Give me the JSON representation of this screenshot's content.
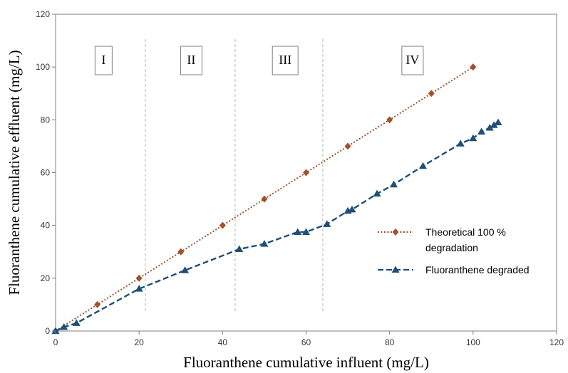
{
  "chart_data": {
    "type": "line",
    "xlabel": "Fluoranthene cumulative influent (mg/L)",
    "ylabel": "Fluoranthene cumulative effluent (mg/L)",
    "xlim": [
      0,
      120
    ],
    "ylim": [
      0,
      120
    ],
    "x_ticks": [
      0,
      20,
      40,
      60,
      80,
      100,
      120
    ],
    "y_ticks": [
      0,
      20,
      40,
      60,
      80,
      100,
      120
    ],
    "grid": false,
    "phase_boundaries": [
      21.5,
      43,
      64
    ],
    "phases": [
      {
        "label": "I",
        "center": 11.5
      },
      {
        "label": "II",
        "center": 32.5
      },
      {
        "label": "III",
        "center": 55
      },
      {
        "label": "IV",
        "center": 85.5
      }
    ],
    "legend_position": "right",
    "series": [
      {
        "name": "Theoretical 100 % degradation",
        "legend_lines": [
          "Theoretical 100 %",
          "degradation"
        ],
        "color": "#A0522D",
        "marker": "diamond",
        "line_style": "dotted",
        "x": [
          0,
          10,
          20,
          30,
          40,
          50,
          60,
          70,
          80,
          90,
          100
        ],
        "y": [
          0,
          10,
          20,
          30,
          40,
          50,
          60,
          70,
          80,
          90,
          100
        ]
      },
      {
        "name": "Fluoranthene degraded",
        "legend_lines": [
          "Fluoranthene degraded"
        ],
        "color": "#1F4E79",
        "marker": "triangle",
        "line_style": "dashed",
        "x": [
          0,
          2,
          5,
          20,
          31,
          44,
          50,
          58,
          60,
          65,
          70,
          71,
          77,
          81,
          88,
          97,
          100,
          102,
          104,
          105,
          106
        ],
        "y": [
          0,
          1.5,
          3,
          16,
          23,
          31,
          33,
          37.5,
          37.5,
          40.5,
          45.5,
          46,
          52,
          55.5,
          62.5,
          71,
          73,
          75.5,
          77,
          78,
          79
        ]
      }
    ]
  }
}
